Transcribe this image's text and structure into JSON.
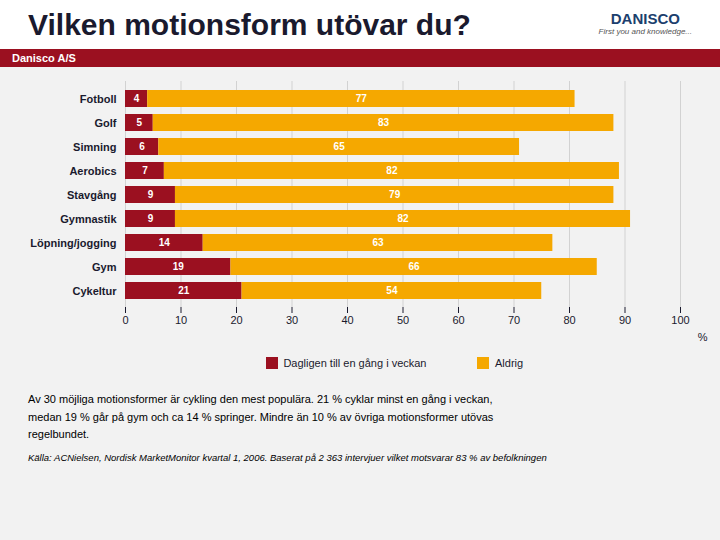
{
  "chart_data": {
    "type": "bar",
    "title": "Vilken motionsform utövar du?",
    "subtitle": "Danisco A/S",
    "annotations": [
      "DANISCO",
      "First you and knowledge...",
      "Av 30 möjliga motionsformer är cykling den mest populära. 21 % cyklar minst en gång i veckan,\nmedan 19 % går på gym och ca 14 % springer. Mindre än 10 % av övriga motionsformer utövas\nregelbundet.",
      "Källa: ACNielsen, Nordisk MarketMonitor kvartal 1, 2006. Baserat på 2 363  intervjuer vilket motsvarar 83 % av befolkningen"
    ],
    "categories": [
      "Cykeltur",
      "Gym",
      "Löpning/jogging",
      "Gymnastik",
      "Stavgång",
      "Aerobics",
      "Simning",
      "Golf",
      "Fotboll"
    ],
    "series": [
      {
        "name": "Dagligen till en gång i veckan",
        "color": "#9B1020",
        "values": [
          21,
          19,
          14,
          9,
          9,
          7,
          6,
          5,
          4
        ]
      },
      {
        "name": "Aldrig",
        "color": "#F5A800",
        "values": [
          54,
          66,
          63,
          82,
          79,
          82,
          65,
          83,
          77
        ]
      }
    ],
    "orientation": "horizontal",
    "stacked": true,
    "data_labels": true,
    "xlim": [
      0,
      100
    ],
    "xticks": [
      0,
      10,
      20,
      30,
      40,
      50,
      60,
      70,
      80,
      90,
      100
    ],
    "xlabel": "%",
    "grid": true,
    "legend": "bottom"
  }
}
